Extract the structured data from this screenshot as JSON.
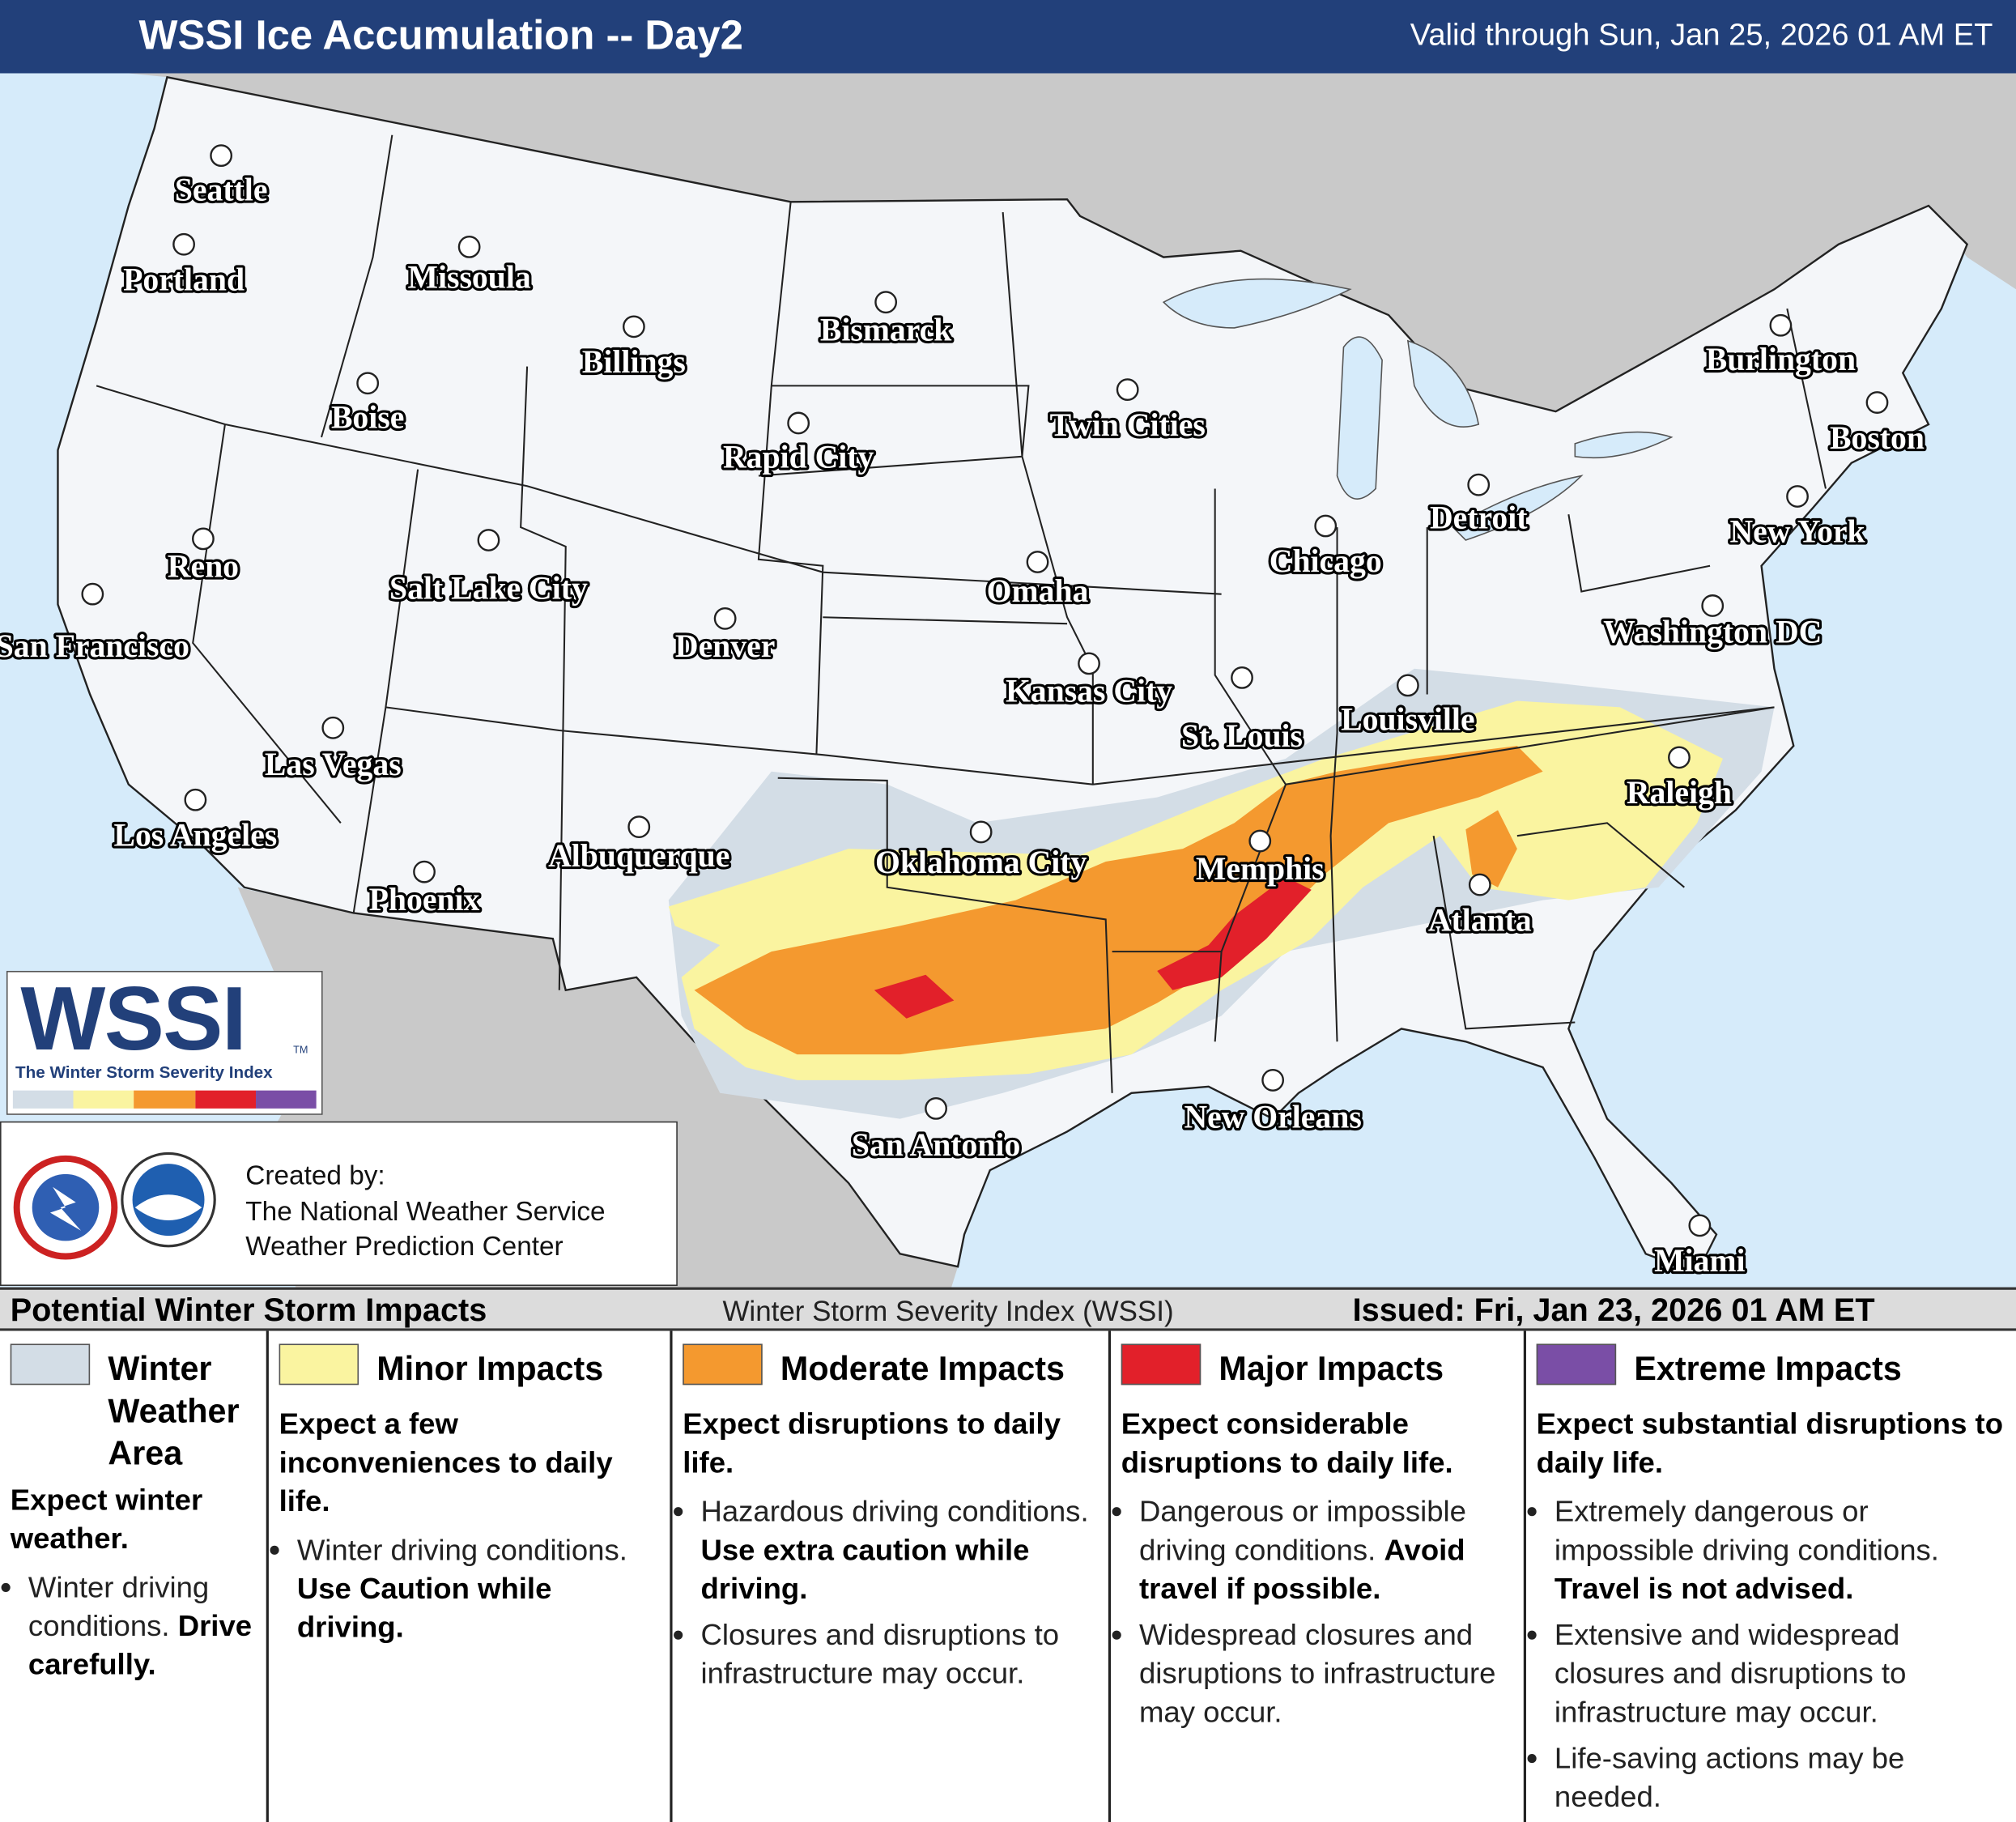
{
  "header": {
    "title": "WSSI Ice Accumulation -- Day2",
    "valid": "Valid through Sun, Jan 25, 2026 01 AM ET"
  },
  "map": {
    "cities": [
      "Seattle",
      "Portland",
      "Missoula",
      "Billings",
      "Bismarck",
      "Boise",
      "Rapid City",
      "Twin Cities",
      "Reno",
      "Salt Lake City",
      "Omaha",
      "Detroit",
      "Chicago",
      "Denver",
      "Kansas City",
      "St. Louis",
      "Louisville",
      "Washington DC",
      "New York",
      "Boston",
      "Burlington",
      "Raleigh",
      "Las Vegas",
      "Los Angeles",
      "San Francisco",
      "Phoenix",
      "Albuquerque",
      "Oklahoma City",
      "Memphis",
      "Atlanta",
      "New Orleans",
      "San Antonio",
      "Miami"
    ]
  },
  "logo": {
    "text": "WSSI",
    "tm": "TM",
    "subtitle": "The Winter Storm Severity Index"
  },
  "credits": {
    "lines": [
      "Created by:",
      "The National Weather Service",
      "Weather Prediction Center"
    ]
  },
  "legend": {
    "title": "Potential Winter Storm Impacts",
    "index": "Winter Storm Severity Index (WSSI)",
    "issued": "Issued: Fri, Jan 23, 2026 01 AM ET",
    "categories": [
      {
        "name": "Winter Weather Area",
        "color": "#d3dde6",
        "summary": "Expect winter weather.",
        "bullets": [
          {
            "text": "Winter driving conditions.",
            "bold": "Drive carefully."
          }
        ]
      },
      {
        "name": "Minor Impacts",
        "color": "#faf4a0",
        "summary": "Expect a few inconveniences to daily life.",
        "bullets": [
          {
            "text": "Winter driving conditions.",
            "bold": "Use Caution while driving."
          }
        ]
      },
      {
        "name": "Moderate Impacts",
        "color": "#f4992f",
        "summary": "Expect disruptions to daily life.",
        "bullets": [
          {
            "text": "Hazardous driving conditions.",
            "bold": "Use extra caution while driving."
          },
          {
            "text": "Closures and disruptions to infrastructure may occur."
          }
        ]
      },
      {
        "name": "Major Impacts",
        "color": "#e2202a",
        "summary": "Expect considerable disruptions to daily life.",
        "bullets": [
          {
            "text": "Dangerous or impossible driving conditions.",
            "bold": "Avoid travel if possible."
          },
          {
            "text": "Widespread closures and disruptions to infrastructure may occur."
          }
        ]
      },
      {
        "name": "Extreme Impacts",
        "color": "#7a4ea6",
        "summary": "Expect substantial disruptions to daily life.",
        "bullets": [
          {
            "text": "Extremely dangerous or impossible driving conditions.",
            "bold": "Travel is not advised."
          },
          {
            "text": "Extensive and widespread closures and disruptions to infrastructure may occur."
          },
          {
            "text": "Life-saving actions may be needed."
          }
        ]
      }
    ]
  }
}
